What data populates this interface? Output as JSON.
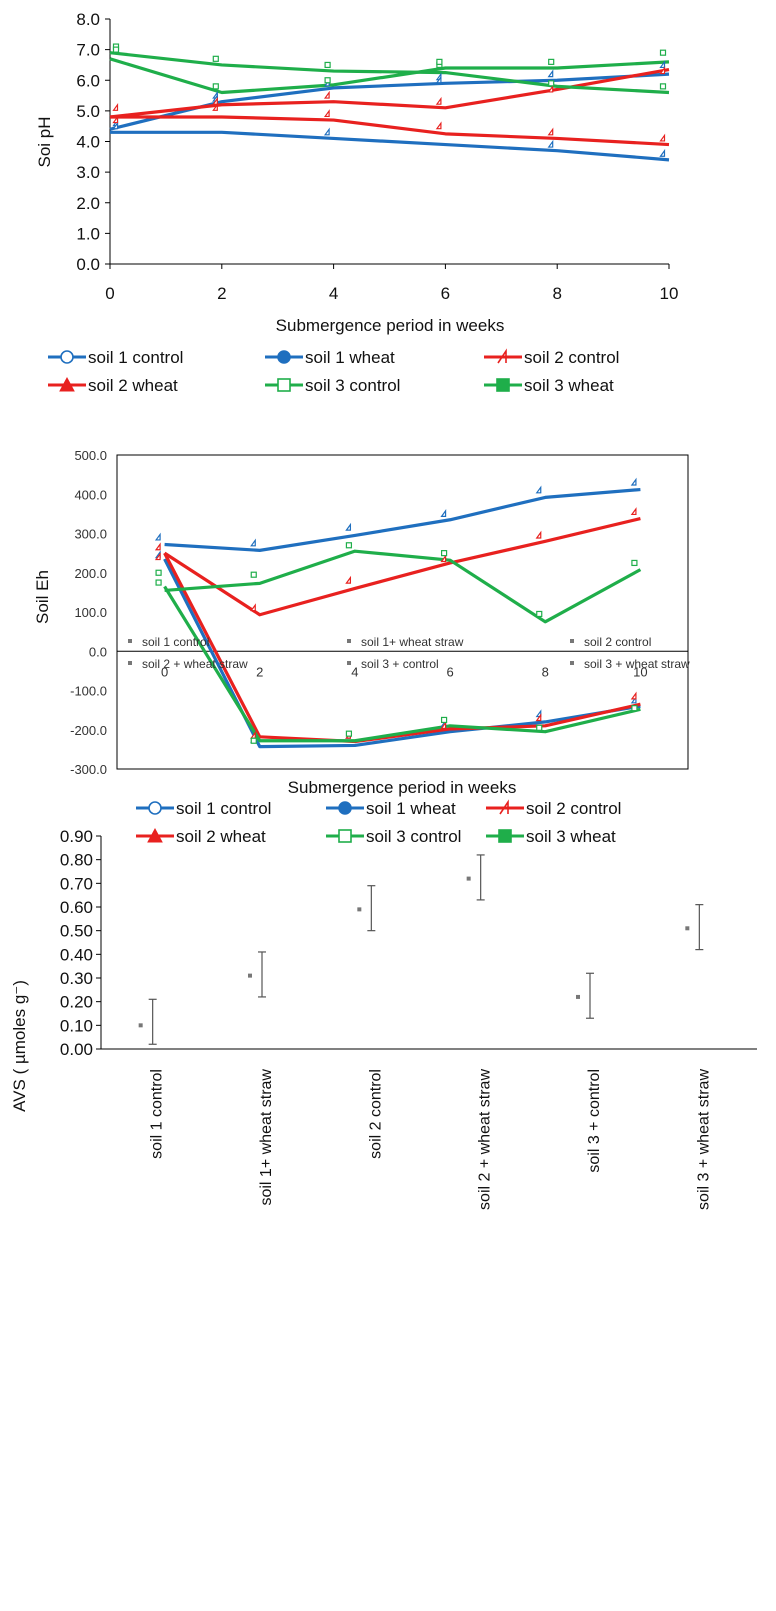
{
  "chart_data": [
    {
      "type": "line",
      "title": "",
      "xlabel": "Submergence period in weeks",
      "ylabel": "Soi pH",
      "x": [
        0,
        2,
        4,
        6,
        8,
        10
      ],
      "xlim": [
        0,
        10
      ],
      "ylim": [
        0,
        8
      ],
      "yticks": [
        "0.0",
        "1.0",
        "2.0",
        "3.0",
        "4.0",
        "5.0",
        "6.0",
        "7.0",
        "8.0"
      ],
      "xticks": [
        "0",
        "2",
        "4",
        "6",
        "8",
        "10"
      ],
      "grid": false,
      "legend_position": "bottom",
      "series": [
        {
          "name": "soil 1 control",
          "color": "#1f6fbf",
          "marker": "triangle-open",
          "points": [
            4.6,
            5.5,
            4.3,
            6.1,
            6.2,
            3.6
          ],
          "trend": [
            4.3,
            4.3,
            4.1,
            3.9,
            3.7,
            3.4
          ]
        },
        {
          "name": "soil 1 wheat",
          "color": "#1f6fbf",
          "marker": "triangle-open",
          "points": [
            4.5,
            5.4,
            5.9,
            6.0,
            3.9,
            6.5
          ],
          "trend": [
            4.4,
            5.3,
            5.75,
            5.9,
            6.0,
            6.2
          ]
        },
        {
          "name": "soil 2 control",
          "color": "#e8211f",
          "marker": "triangle-open",
          "points": [
            5.1,
            5.1,
            4.9,
            4.5,
            4.3,
            4.1
          ],
          "trend": [
            4.8,
            4.8,
            4.7,
            4.25,
            4.1,
            3.9
          ]
        },
        {
          "name": "soil 2 wheat",
          "color": "#e8211f",
          "marker": "triangle-open",
          "points": [
            4.7,
            5.3,
            5.5,
            5.3,
            5.7,
            6.3
          ],
          "trend": [
            4.8,
            5.2,
            5.3,
            5.1,
            5.7,
            6.35
          ]
        },
        {
          "name": "soil 3 control",
          "color": "#1fae4a",
          "marker": "square-open",
          "points": [
            7.1,
            6.7,
            6.5,
            6.5,
            5.9,
            5.8
          ],
          "trend": [
            6.9,
            6.5,
            6.3,
            6.25,
            5.8,
            5.6
          ]
        },
        {
          "name": "soil 3 wheat",
          "color": "#1fae4a",
          "marker": "square-open",
          "points": [
            7.0,
            5.8,
            6.0,
            6.6,
            6.6,
            6.9
          ],
          "trend": [
            6.7,
            5.6,
            5.85,
            6.4,
            6.4,
            6.6
          ]
        }
      ]
    },
    {
      "type": "line",
      "title": "",
      "xlabel": "Submergence period in weeks",
      "ylabel": "Soil Eh",
      "x": [
        0,
        2,
        4,
        6,
        8,
        10
      ],
      "xlim": [
        -1,
        11
      ],
      "ylim": [
        -300,
        500
      ],
      "yticks": [
        "-300.0",
        "-200.0",
        "-100.0",
        "0.0",
        "100.0",
        "200.0",
        "300.0",
        "400.0",
        "500.0"
      ],
      "xticks": [
        "0",
        "2",
        "4",
        "6",
        "8",
        "10"
      ],
      "grid": false,
      "legend_position": "bottom",
      "series": [
        {
          "name": "soil 1 control",
          "color": "#1f6fbf",
          "marker": "triangle-open",
          "points": [
            290,
            275,
            315,
            350,
            410,
            430
          ],
          "trend": [
            272,
            257,
            295,
            335,
            392,
            412
          ]
        },
        {
          "name": "soil 1 wheat",
          "color": "#1f6fbf",
          "marker": "triangle-open",
          "points": [
            245,
            -225,
            -215,
            -185,
            -160,
            -125
          ],
          "trend": [
            235,
            -243,
            -240,
            -205,
            -180,
            -140
          ]
        },
        {
          "name": "soil 2 control",
          "color": "#e8211f",
          "marker": "triangle-open",
          "points": [
            265,
            110,
            180,
            235,
            295,
            355
          ],
          "trend": [
            250,
            93,
            160,
            225,
            280,
            338
          ]
        },
        {
          "name": "soil 2 wheat",
          "color": "#e8211f",
          "marker": "triangle-open",
          "points": [
            240,
            -215,
            -215,
            -190,
            -170,
            -115
          ],
          "trend": [
            250,
            -218,
            -230,
            -198,
            -190,
            -135
          ]
        },
        {
          "name": "soil 3 control",
          "color": "#1fae4a",
          "marker": "square-open",
          "points": [
            175,
            195,
            270,
            250,
            95,
            225
          ],
          "trend": [
            155,
            173,
            255,
            232,
            75,
            208
          ]
        },
        {
          "name": "soil 3 wheat",
          "color": "#1fae4a",
          "marker": "square-open",
          "points": [
            200,
            -228,
            -210,
            -175,
            -195,
            -145
          ],
          "trend": [
            165,
            -228,
            -228,
            -190,
            -205,
            -148
          ]
        }
      ]
    },
    {
      "type": "scatter",
      "title": "",
      "xlabel": "",
      "ylabel": "AVS ( µmoles g⁻)",
      "ylim": [
        0,
        0.9
      ],
      "yticks": [
        "0.00",
        "0.10",
        "0.20",
        "0.30",
        "0.40",
        "0.50",
        "0.60",
        "0.70",
        "0.80",
        "0.90"
      ],
      "categories": [
        "soil 1 control",
        "soil 1+ wheat straw",
        "soil 2 control",
        "soil 2 + wheat straw",
        "soil 3 +  control",
        "soil 3 + wheat straw"
      ],
      "values": [
        0.1,
        0.31,
        0.59,
        0.72,
        0.22,
        0.51
      ],
      "error_low": [
        0.02,
        0.22,
        0.5,
        0.63,
        0.13,
        0.42
      ],
      "error_high": [
        0.21,
        0.41,
        0.69,
        0.82,
        0.32,
        0.61
      ],
      "grid": false,
      "legend_position": "top",
      "legend": [
        "soil 1 control",
        "soil 1+ wheat straw",
        "soil 2 control",
        "soil 2 + wheat straw",
        "soil 3 +  control",
        "soil 3 + wheat straw"
      ]
    }
  ]
}
